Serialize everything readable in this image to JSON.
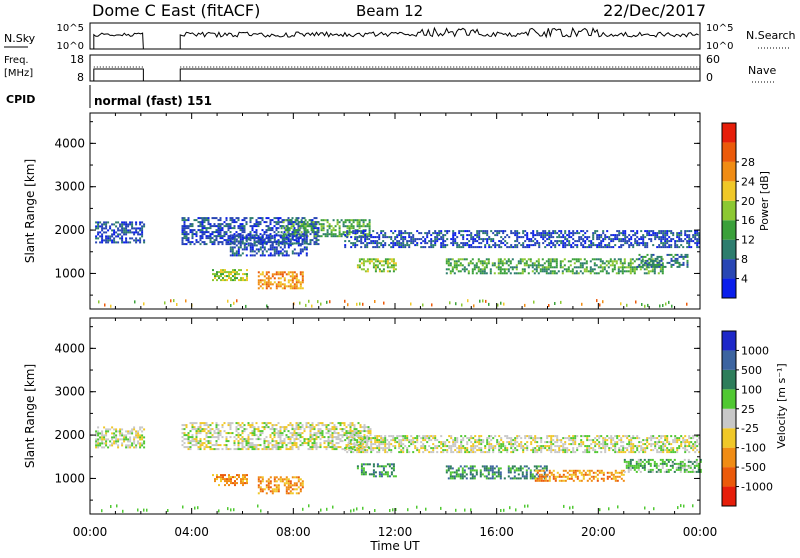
{
  "header": {
    "station": "Dome C East (fitACF)",
    "beam": "Beam 12",
    "date": "22/Dec/2017"
  },
  "nsky_panel": {
    "left_label": "N.Sky",
    "right_label": "N.Search",
    "left_ticks": [
      "10^5",
      "10^0"
    ],
    "right_ticks": [
      "10^5",
      "10^0"
    ]
  },
  "freq_panel": {
    "left_label_1": "Freq.",
    "left_label_2": "[MHz]",
    "right_label": "Nave",
    "left_ticks": [
      "18",
      "8"
    ],
    "right_ticks": [
      "60",
      "0"
    ]
  },
  "cpid_panel": {
    "label": "CPID",
    "text": "normal (fast) 151"
  },
  "chart_data": [
    {
      "type": "heatmap",
      "title": "",
      "xlabel": "Time UT",
      "ylabel": "Slant Range [km]",
      "x_ticks": [
        "00:00",
        "04:00",
        "08:00",
        "12:00",
        "16:00",
        "20:00",
        "00:00"
      ],
      "y_ticks": [
        "1000",
        "2000",
        "3000",
        "4000"
      ],
      "xlim": [
        0,
        24
      ],
      "ylim": [
        180,
        4700
      ],
      "colorbar": {
        "label": "Power [dB]",
        "ticks": [
          "4",
          "8",
          "12",
          "16",
          "20",
          "24",
          "28"
        ],
        "colors": [
          "#0a1eeb",
          "#2846b4",
          "#2d7d6e",
          "#3aa03a",
          "#8cc832",
          "#f0c828",
          "#f08c14",
          "#eb5a0a",
          "#e61e0a"
        ]
      },
      "echo_regions": [
        {
          "t0": 0.2,
          "t1": 2.1,
          "r0": 1700,
          "r1": 2200,
          "level": 1
        },
        {
          "t0": 3.6,
          "t1": 9.0,
          "r0": 1700,
          "r1": 2300,
          "level": 1
        },
        {
          "t0": 7.5,
          "t1": 11.0,
          "r0": 1850,
          "r1": 2250,
          "level": 3
        },
        {
          "t0": 10.0,
          "t1": 24.0,
          "r0": 1600,
          "r1": 2000,
          "level": 1
        },
        {
          "t0": 5.5,
          "t1": 8.5,
          "r0": 1400,
          "r1": 1900,
          "level": 1
        },
        {
          "t0": 4.8,
          "t1": 6.2,
          "r0": 850,
          "r1": 1100,
          "level": 4
        },
        {
          "t0": 6.6,
          "t1": 8.4,
          "r0": 650,
          "r1": 1050,
          "level": 6
        },
        {
          "t0": 10.5,
          "t1": 12.0,
          "r0": 1050,
          "r1": 1350,
          "level": 4
        },
        {
          "t0": 14.0,
          "t1": 22.5,
          "r0": 1000,
          "r1": 1350,
          "level": 3
        },
        {
          "t0": 21.5,
          "t1": 23.5,
          "r0": 1150,
          "r1": 1450,
          "level": 2
        }
      ]
    },
    {
      "type": "heatmap",
      "title": "",
      "xlabel": "Time UT",
      "ylabel": "Slant Range [km]",
      "x_ticks": [
        "00:00",
        "04:00",
        "08:00",
        "12:00",
        "16:00",
        "20:00",
        "00:00"
      ],
      "y_ticks": [
        "1000",
        "2000",
        "3000",
        "4000"
      ],
      "xlim": [
        0,
        24
      ],
      "ylim": [
        180,
        4700
      ],
      "colorbar": {
        "label": "Velocity [m s⁻¹]",
        "ticks": [
          "1000",
          "500",
          "100",
          "25",
          "-25",
          "-100",
          "-500",
          "-1000"
        ],
        "colors": [
          "#1e28c8",
          "#3c64a0",
          "#2d7d5a",
          "#50c832",
          "#c8c8c8",
          "#f0c828",
          "#f08c14",
          "#eb5a0a",
          "#e61e0a"
        ]
      },
      "echo_regions": [
        {
          "t0": 0.2,
          "t1": 2.1,
          "r0": 1700,
          "r1": 2200,
          "level": 4
        },
        {
          "t0": 3.6,
          "t1": 11.0,
          "r0": 1700,
          "r1": 2300,
          "level": 4
        },
        {
          "t0": 10.0,
          "t1": 24.0,
          "r0": 1600,
          "r1": 2000,
          "level": 4
        },
        {
          "t0": 4.8,
          "t1": 6.2,
          "r0": 850,
          "r1": 1100,
          "level": 6
        },
        {
          "t0": 6.6,
          "t1": 8.4,
          "r0": 650,
          "r1": 1050,
          "level": 6
        },
        {
          "t0": 10.5,
          "t1": 12.0,
          "r0": 1050,
          "r1": 1350,
          "level": 2
        },
        {
          "t0": 14.0,
          "t1": 18.0,
          "r0": 1000,
          "r1": 1300,
          "level": 2
        },
        {
          "t0": 17.5,
          "t1": 21.0,
          "r0": 950,
          "r1": 1200,
          "level": 6
        },
        {
          "t0": 21.0,
          "t1": 24.0,
          "r0": 1150,
          "r1": 1450,
          "level": 3
        }
      ]
    }
  ]
}
